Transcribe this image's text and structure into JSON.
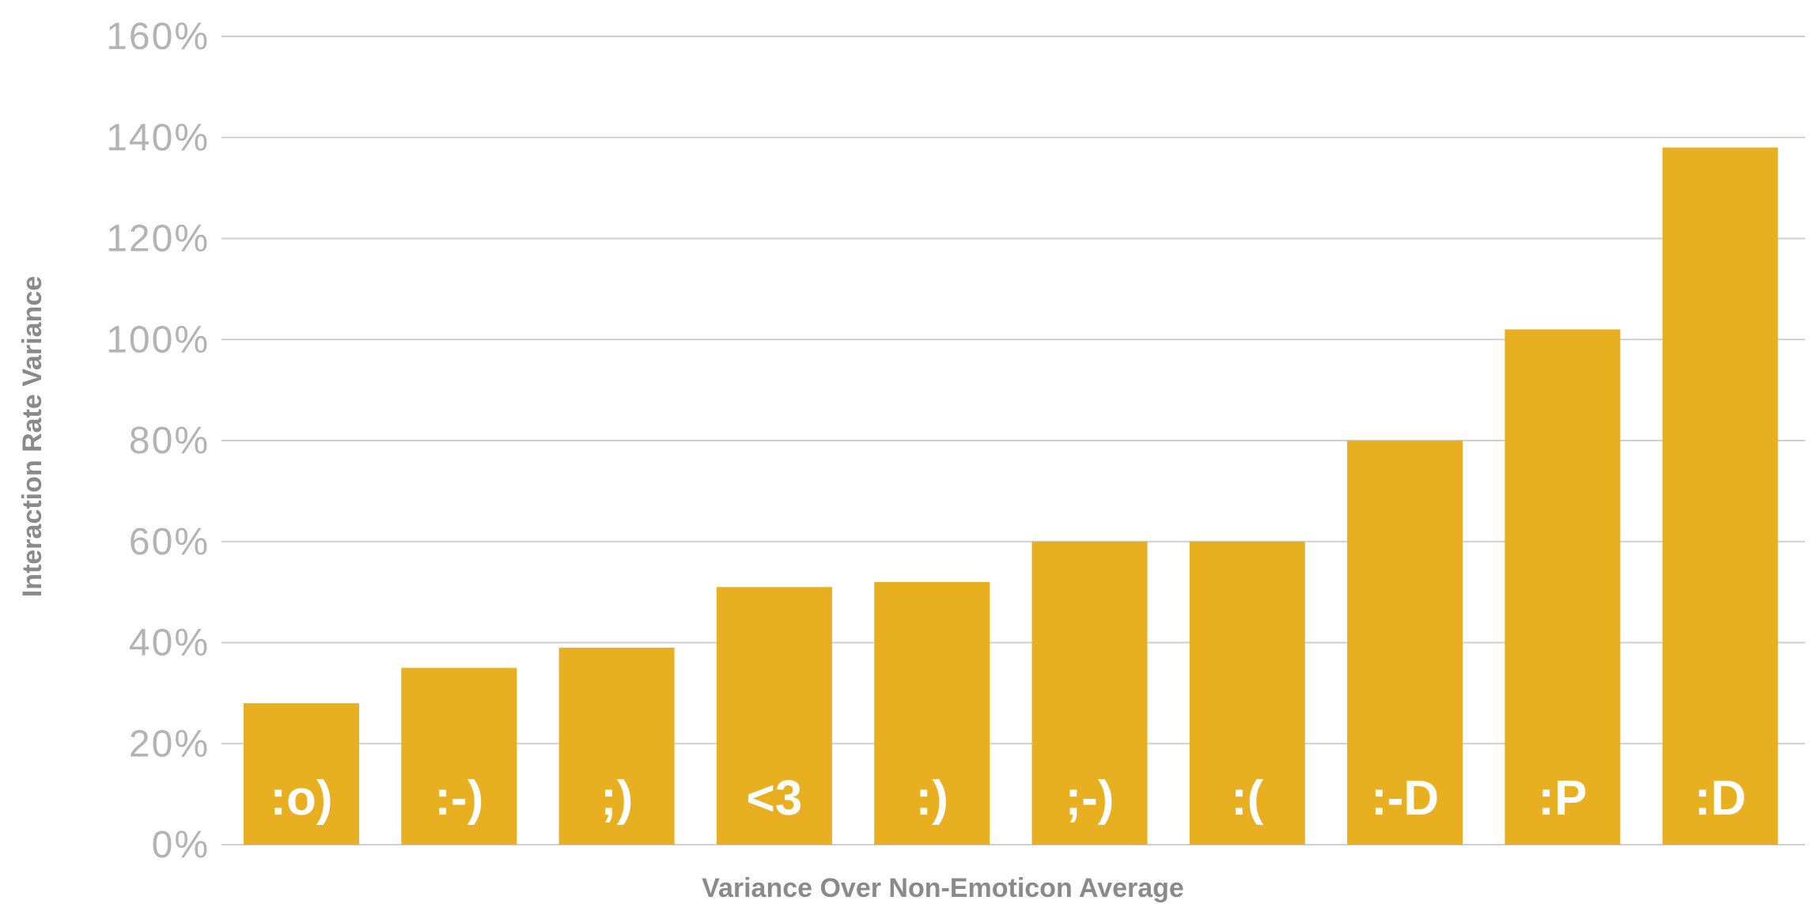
{
  "chart_data": {
    "type": "bar",
    "categories": [
      ":o)",
      ":-)",
      ";)",
      "<3",
      ":)",
      ";-)",
      ":(",
      ":-D",
      ":P",
      ":D"
    ],
    "values": [
      28,
      35,
      39,
      51,
      52,
      60,
      60,
      80,
      102,
      138
    ],
    "title": "",
    "xlabel": "Variance Over Non-Emoticon Average",
    "ylabel": "Interaction Rate Variance",
    "ylim": [
      0,
      160
    ],
    "yticks": [
      0,
      20,
      40,
      60,
      80,
      100,
      120,
      140,
      160
    ],
    "ytick_labels": [
      "0%",
      "20%",
      "40%",
      "60%",
      "80%",
      "100%",
      "120%",
      "140%",
      "160%"
    ],
    "grid": true,
    "bar_color": "#e8b021",
    "label_color": "#ffffff"
  }
}
